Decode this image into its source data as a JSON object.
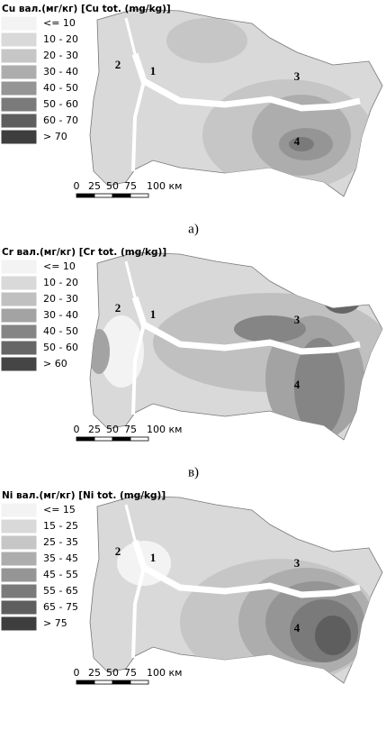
{
  "panels": [
    {
      "title": "Cu вал.(мг/кг) [Cu tot. (mg/kg)]",
      "legend": [
        {
          "label": "<= 10",
          "color": "#f3f3f3"
        },
        {
          "label": "10 - 20",
          "color": "#d9d9d9"
        },
        {
          "label": "20 - 30",
          "color": "#c6c6c6"
        },
        {
          "label": "30 - 40",
          "color": "#adadad"
        },
        {
          "label": "40 - 50",
          "color": "#959595"
        },
        {
          "label": "50 - 60",
          "color": "#7a7a7a"
        },
        {
          "label": "60 - 70",
          "color": "#5e5e5e"
        },
        {
          "label": "> 70",
          "color": "#3e3e3e"
        }
      ],
      "scale": [
        "0",
        "25",
        "50",
        "75",
        "100 км"
      ],
      "points": [
        "1",
        "2",
        "3",
        "4"
      ],
      "caption": "а)"
    },
    {
      "title": "Cr вал.(мг/кг) [Cr tot. (mg/kg)]",
      "legend": [
        {
          "label": "<= 10",
          "color": "#f3f3f3"
        },
        {
          "label": "10 - 20",
          "color": "#d9d9d9"
        },
        {
          "label": "20 - 30",
          "color": "#c0c0c0"
        },
        {
          "label": "30 - 40",
          "color": "#a3a3a3"
        },
        {
          "label": "40 - 50",
          "color": "#858585"
        },
        {
          "label": "50 - 60",
          "color": "#666666"
        },
        {
          "label": "> 60",
          "color": "#454545"
        }
      ],
      "scale": [
        "0",
        "25",
        "50",
        "75",
        "100 км"
      ],
      "points": [
        "1",
        "2",
        "3",
        "4"
      ],
      "caption": "в)"
    },
    {
      "title": "Ni вал.(мг/кг) [Ni tot. (mg/kg)]",
      "legend": [
        {
          "label": "<= 15",
          "color": "#f3f3f3"
        },
        {
          "label": "15 - 25",
          "color": "#d9d9d9"
        },
        {
          "label": "25 - 35",
          "color": "#c6c6c6"
        },
        {
          "label": "35 - 45",
          "color": "#adadad"
        },
        {
          "label": "45 - 55",
          "color": "#959595"
        },
        {
          "label": "55 - 65",
          "color": "#7a7a7a"
        },
        {
          "label": "65 - 75",
          "color": "#5e5e5e"
        },
        {
          "label": "> 75",
          "color": "#3e3e3e"
        }
      ],
      "scale": [
        "0",
        "25",
        "50",
        "75",
        "100 км"
      ],
      "points": [
        "1",
        "2",
        "3",
        "4"
      ]
    }
  ]
}
